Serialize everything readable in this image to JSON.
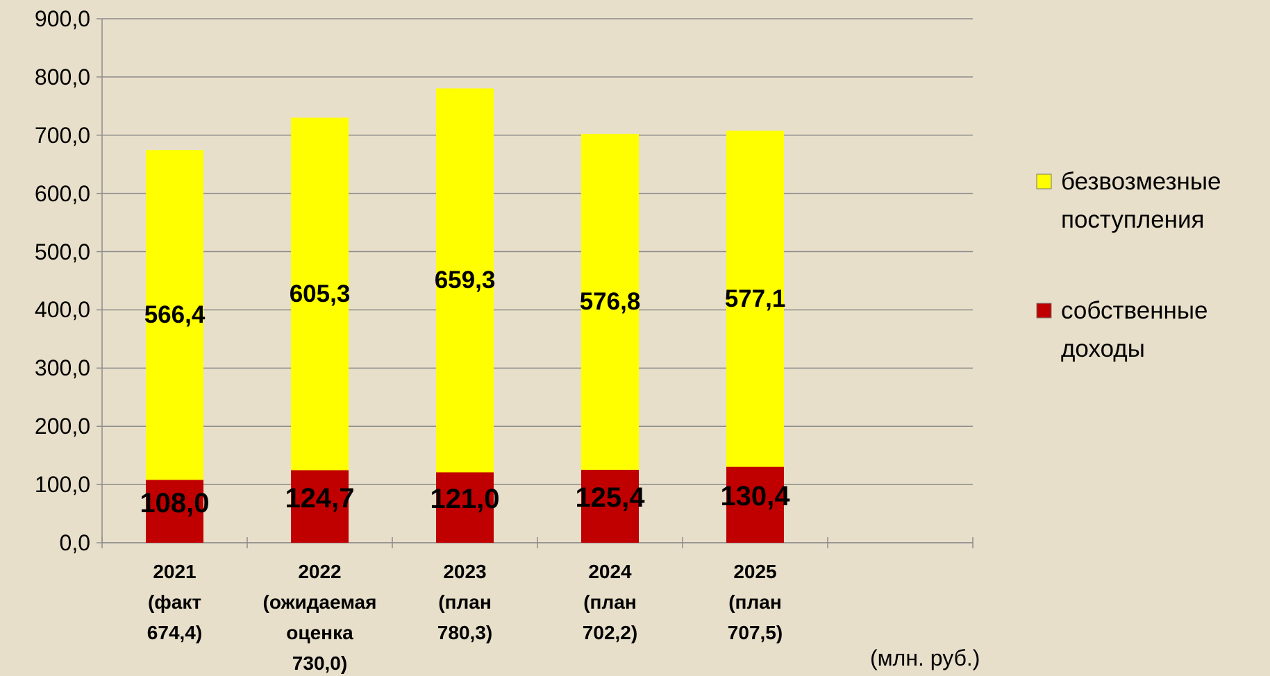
{
  "chart_data": {
    "type": "stacked-bar",
    "categories": [
      "2021\n(факт\n674,4)",
      "2022\n(ожидаемая\nоценка\n730,0)",
      "2023\n(план\n780,3)",
      "2024\n(план\n702,2)",
      "2025\n(план\n707,5)",
      null
    ],
    "series": [
      {
        "name": "собственные доходы",
        "color": "#c00000",
        "values": [
          108.0,
          124.7,
          121.0,
          125.4,
          130.4,
          null
        ],
        "value_labels": [
          "108,0",
          "124,7",
          "121,0",
          "125,4",
          "130,4",
          null
        ]
      },
      {
        "name": "безвозмезные поступления",
        "color": "#ffff00",
        "values": [
          566.4,
          605.3,
          659.3,
          576.8,
          577.1,
          null
        ],
        "value_labels": [
          "566,4",
          "605,3",
          "659,3",
          "576,8",
          "577,1",
          null
        ]
      }
    ],
    "ylim": [
      0,
      900
    ],
    "yticks": [
      {
        "value": 0,
        "label": "0,0"
      },
      {
        "value": 100,
        "label": "100,0"
      },
      {
        "value": 200,
        "label": "200,0"
      },
      {
        "value": 300,
        "label": "300,0"
      },
      {
        "value": 400,
        "label": "400,0"
      },
      {
        "value": 500,
        "label": "500,0"
      },
      {
        "value": 600,
        "label": "600,0"
      },
      {
        "value": 700,
        "label": "700,0"
      },
      {
        "value": 800,
        "label": "800,0"
      },
      {
        "value": 900,
        "label": "900,0"
      }
    ],
    "grid": true,
    "legend": "right",
    "annotation": "(млн. руб.)"
  }
}
